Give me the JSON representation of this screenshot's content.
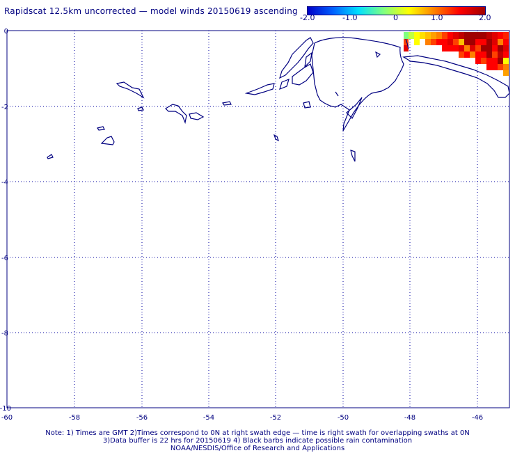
{
  "title": "Rapidscat 12.5km uncorrected — model winds 20150619 ascending",
  "colorbar": {
    "colors": [
      "#0000c8",
      "#0060ff",
      "#00e0ff",
      "#80ff80",
      "#ffff00",
      "#ff8000",
      "#ff0000",
      "#a00000"
    ],
    "ticks": [
      "-2.0",
      "-1.0",
      "0",
      "1.0",
      "2.0"
    ]
  },
  "axes": {
    "x_ticks": [
      "-60",
      "-58",
      "-56",
      "-54",
      "-52",
      "-50",
      "-48",
      "-46"
    ],
    "y_ticks": [
      "0",
      "-2",
      "-4",
      "-6",
      "-8",
      "-10"
    ],
    "grid_color": "#0000a0",
    "coast_color": "#000080"
  },
  "notes": [
    "Note: 1) Times are GMT 2)Times correspond to 0N at right swath edge — time is right swath for overlapping swaths at 0N",
    "3)Data buffer is 22 hrs for 20150619 4) Black barbs indicate possible rain contamination",
    "NOAA/NESDIS/Office of Research and Applications"
  ]
}
